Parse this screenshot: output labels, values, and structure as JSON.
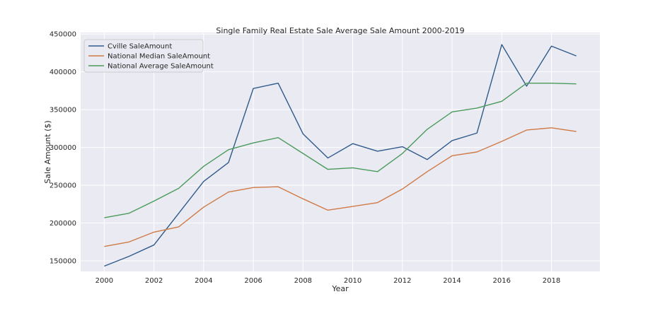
{
  "chart_data": {
    "type": "line",
    "title": "Single Family Real Estate Sale Average Sale Amount 2000-2019",
    "xlabel": "Year",
    "ylabel": "Sale Amount ($)",
    "x": [
      2000,
      2001,
      2002,
      2003,
      2004,
      2005,
      2006,
      2007,
      2008,
      2009,
      2010,
      2011,
      2012,
      2013,
      2014,
      2015,
      2016,
      2017,
      2018,
      2019
    ],
    "xlim": [
      1999.05,
      2019.95
    ],
    "ylim": [
      136000,
      452000
    ],
    "xticks": [
      "2000",
      "2002",
      "2004",
      "2006",
      "2008",
      "2010",
      "2012",
      "2014",
      "2016",
      "2018"
    ],
    "yticks": [
      "150000",
      "200000",
      "250000",
      "300000",
      "350000",
      "400000",
      "450000"
    ],
    "grid": true,
    "legend_position": "top-left",
    "background_color": "#eaeaf2",
    "series": [
      {
        "name": "Cville SaleAmount",
        "color": "#2f5a8b",
        "values": [
          143000,
          156000,
          171000,
          213000,
          255000,
          280000,
          378000,
          385000,
          318000,
          286000,
          305000,
          295000,
          301000,
          284000,
          309000,
          319000,
          436000,
          381000,
          434000,
          421000
        ]
      },
      {
        "name": "National Median SaleAmount",
        "color": "#d07a45",
        "values": [
          169000,
          175000,
          188000,
          195000,
          221000,
          241000,
          247000,
          248000,
          232000,
          217000,
          222000,
          227000,
          245000,
          268000,
          289000,
          294000,
          308000,
          323000,
          326000,
          321000
        ]
      },
      {
        "name": "National Average SaleAmount",
        "color": "#4a9a5b",
        "values": [
          207000,
          213000,
          229000,
          246000,
          275000,
          297000,
          306000,
          313000,
          292000,
          271000,
          273000,
          268000,
          292000,
          324000,
          347000,
          352000,
          361000,
          385000,
          385000,
          384000
        ]
      }
    ]
  }
}
